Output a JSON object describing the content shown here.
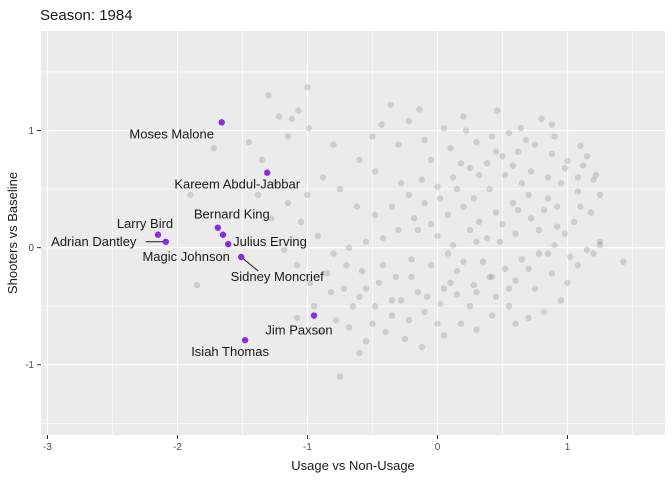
{
  "chart_data": {
    "type": "scatter",
    "title": "Season: 1984",
    "xlabel": "Usage vs Non-Usage",
    "ylabel": "Shooters vs Baseline",
    "xlim": [
      -3.05,
      1.75
    ],
    "ylim": [
      -1.6,
      1.85
    ],
    "xticks": [
      -3,
      -2,
      -1,
      0,
      1
    ],
    "yticks": [
      -1,
      0,
      1
    ],
    "xtick_labels": [
      "-3",
      "-2",
      "-1",
      "0",
      "1"
    ],
    "ytick_labels": [
      "-1",
      "0",
      "1"
    ],
    "grid": true,
    "highlight_color": "#8a2be2",
    "background_color": "#666666",
    "panel_color": "#ebebeb",
    "highlighted": [
      {
        "name": "Moses Malone",
        "x": -1.66,
        "y": 1.07
      },
      {
        "name": "Kareem Abdul-Jabbar",
        "x": -1.31,
        "y": 0.64
      },
      {
        "name": "Bernard King",
        "x": -1.69,
        "y": 0.17
      },
      {
        "name": "Larry Bird",
        "x": -2.15,
        "y": 0.11
      },
      {
        "name": "Julius Erving",
        "x": -1.65,
        "y": 0.11
      },
      {
        "name": "Adrian Dantley",
        "x": -2.09,
        "y": 0.05
      },
      {
        "name": "Magic Johnson",
        "x": -1.61,
        "y": 0.03
      },
      {
        "name": "Sidney Moncrief",
        "x": -1.51,
        "y": -0.08
      },
      {
        "name": "Jim Paxson",
        "x": -0.95,
        "y": -0.58
      },
      {
        "name": "Isiah Thomas",
        "x": -1.48,
        "y": -0.79
      }
    ],
    "background_points": [
      [
        -1.0,
        1.37
      ],
      [
        -1.07,
        1.17
      ],
      [
        -1.22,
        1.12
      ],
      [
        -1.12,
        1.1
      ],
      [
        -0.99,
        1.02
      ],
      [
        -0.43,
        1.05
      ],
      [
        -0.22,
        1.08
      ],
      [
        -0.14,
        1.18
      ],
      [
        -0.36,
        1.22
      ],
      [
        0.05,
        1.02
      ],
      [
        0.22,
        1.0
      ],
      [
        0.46,
        1.17
      ],
      [
        0.64,
        1.02
      ],
      [
        0.88,
        1.05
      ],
      [
        1.1,
        0.87
      ],
      [
        -1.3,
        1.3
      ],
      [
        -1.15,
        0.95
      ],
      [
        -0.8,
        0.88
      ],
      [
        -0.6,
        0.75
      ],
      [
        -0.48,
        0.65
      ],
      [
        -0.28,
        0.55
      ],
      [
        -0.12,
        0.58
      ],
      [
        0.0,
        0.52
      ],
      [
        0.12,
        0.6
      ],
      [
        0.25,
        0.68
      ],
      [
        0.38,
        0.72
      ],
      [
        0.5,
        0.78
      ],
      [
        0.62,
        0.82
      ],
      [
        0.75,
        0.88
      ],
      [
        0.88,
        0.8
      ],
      [
        1.0,
        0.74
      ],
      [
        1.12,
        0.7
      ],
      [
        1.2,
        0.58
      ],
      [
        1.25,
        0.45
      ],
      [
        1.18,
        0.3
      ],
      [
        1.05,
        0.22
      ],
      [
        0.92,
        0.18
      ],
      [
        0.82,
        0.32
      ],
      [
        0.7,
        0.45
      ],
      [
        0.58,
        0.38
      ],
      [
        0.45,
        0.3
      ],
      [
        0.32,
        0.22
      ],
      [
        0.2,
        0.35
      ],
      [
        0.08,
        0.28
      ],
      [
        -0.05,
        0.2
      ],
      [
        -0.18,
        0.25
      ],
      [
        -0.3,
        0.15
      ],
      [
        -0.42,
        0.08
      ],
      [
        -0.55,
        0.05
      ],
      [
        -0.68,
        0.0
      ],
      [
        -0.8,
        -0.05
      ],
      [
        -0.92,
        0.1
      ],
      [
        -1.05,
        0.22
      ],
      [
        -1.15,
        0.38
      ],
      [
        -1.25,
        0.55
      ],
      [
        -1.35,
        0.75
      ],
      [
        -1.45,
        0.9
      ],
      [
        -1.38,
        0.45
      ],
      [
        -1.28,
        0.25
      ],
      [
        -1.18,
        -0.02
      ],
      [
        -1.08,
        -0.15
      ],
      [
        -0.98,
        -0.3
      ],
      [
        -0.85,
        -0.22
      ],
      [
        -0.72,
        -0.35
      ],
      [
        -0.6,
        -0.42
      ],
      [
        -0.48,
        -0.5
      ],
      [
        -0.35,
        -0.58
      ],
      [
        -0.22,
        -0.62
      ],
      [
        -0.1,
        -0.55
      ],
      [
        0.02,
        -0.48
      ],
      [
        0.15,
        -0.4
      ],
      [
        0.28,
        -0.32
      ],
      [
        0.4,
        -0.25
      ],
      [
        0.52,
        -0.18
      ],
      [
        0.65,
        -0.1
      ],
      [
        0.78,
        -0.05
      ],
      [
        0.9,
        0.02
      ],
      [
        1.02,
        -0.08
      ],
      [
        1.15,
        -0.02
      ],
      [
        1.25,
        0.05
      ],
      [
        1.43,
        -0.12
      ],
      [
        0.55,
        -0.5
      ],
      [
        0.7,
        -0.6
      ],
      [
        0.82,
        -0.55
      ],
      [
        0.95,
        -0.45
      ],
      [
        0.6,
        -0.65
      ],
      [
        0.42,
        -0.58
      ],
      [
        0.3,
        -0.7
      ],
      [
        0.18,
        -0.65
      ],
      [
        0.05,
        -0.75
      ],
      [
        -0.12,
        -0.85
      ],
      [
        -0.25,
        -0.78
      ],
      [
        -0.4,
        -0.72
      ],
      [
        -0.55,
        -0.8
      ],
      [
        -0.68,
        -0.68
      ],
      [
        -0.75,
        -1.1
      ],
      [
        -0.6,
        -0.9
      ],
      [
        -0.35,
        -0.45
      ],
      [
        -0.15,
        -0.38
      ],
      [
        0.1,
        -0.3
      ],
      [
        0.35,
        -0.12
      ],
      [
        0.48,
        0.05
      ],
      [
        0.6,
        0.12
      ],
      [
        0.72,
        0.25
      ],
      [
        0.85,
        0.42
      ],
      [
        0.95,
        0.55
      ],
      [
        1.08,
        0.48
      ],
      [
        1.22,
        0.62
      ],
      [
        1.1,
        0.35
      ],
      [
        0.98,
        0.12
      ],
      [
        0.65,
        0.55
      ],
      [
        0.52,
        0.62
      ],
      [
        0.4,
        0.5
      ],
      [
        0.28,
        0.42
      ],
      [
        0.15,
        0.5
      ],
      [
        0.02,
        0.42
      ],
      [
        -0.1,
        0.38
      ],
      [
        -0.22,
        0.45
      ],
      [
        -0.35,
        0.35
      ],
      [
        -0.48,
        0.28
      ],
      [
        -0.62,
        0.35
      ],
      [
        -0.75,
        0.5
      ],
      [
        -0.88,
        0.6
      ],
      [
        -1.0,
        0.45
      ],
      [
        -0.5,
        0.95
      ],
      [
        -0.3,
        0.88
      ],
      [
        -0.1,
        0.92
      ],
      [
        0.1,
        0.85
      ],
      [
        0.3,
        0.9
      ],
      [
        0.42,
        0.95
      ],
      [
        0.55,
        0.98
      ],
      [
        0.68,
        0.92
      ],
      [
        0.8,
        1.1
      ],
      [
        0.2,
        1.12
      ],
      [
        -0.05,
        0.75
      ],
      [
        0.18,
        0.72
      ],
      [
        0.32,
        0.62
      ],
      [
        0.45,
        0.82
      ],
      [
        0.58,
        0.7
      ],
      [
        0.72,
        0.65
      ],
      [
        0.85,
        0.6
      ],
      [
        0.98,
        0.68
      ],
      [
        1.08,
        0.6
      ],
      [
        1.15,
        0.78
      ],
      [
        0.9,
        0.95
      ],
      [
        0.3,
        0.05
      ],
      [
        0.2,
        -0.12
      ],
      [
        0.08,
        -0.05
      ],
      [
        -0.05,
        -0.15
      ],
      [
        -0.2,
        -0.1
      ],
      [
        -0.32,
        -0.25
      ],
      [
        -0.45,
        -0.3
      ],
      [
        -0.58,
        -0.2
      ],
      [
        -0.7,
        -0.15
      ],
      [
        -0.82,
        -0.38
      ],
      [
        -0.95,
        -0.5
      ],
      [
        -1.08,
        -0.6
      ],
      [
        -0.5,
        -0.65
      ],
      [
        -0.2,
        -0.25
      ],
      [
        0.0,
        -0.65
      ],
      [
        0.25,
        -0.5
      ],
      [
        0.45,
        -0.42
      ],
      [
        0.6,
        -0.28
      ],
      [
        0.75,
        -0.35
      ],
      [
        0.88,
        -0.22
      ],
      [
        1.0,
        -0.3
      ],
      [
        1.08,
        -0.15
      ],
      [
        1.2,
        -0.05
      ],
      [
        1.25,
        0.02
      ],
      [
        0.85,
        -0.05
      ],
      [
        0.7,
        -0.18
      ],
      [
        0.55,
        -0.35
      ],
      [
        0.42,
        -0.25
      ],
      [
        0.3,
        -0.38
      ],
      [
        0.15,
        -0.2
      ],
      [
        0.05,
        -0.35
      ],
      [
        -0.08,
        -0.42
      ],
      [
        -0.28,
        -0.45
      ],
      [
        -0.42,
        -0.15
      ],
      [
        -0.55,
        -0.35
      ],
      [
        -0.65,
        -0.5
      ],
      [
        -0.78,
        -0.62
      ],
      [
        -0.9,
        -0.72
      ],
      [
        -1.85,
        -0.32
      ],
      [
        -1.72,
        0.85
      ],
      [
        -1.9,
        0.45
      ],
      [
        -0.15,
        0.15
      ],
      [
        0.0,
        0.1
      ],
      [
        0.12,
        0.02
      ],
      [
        0.25,
        0.15
      ],
      [
        0.38,
        0.08
      ],
      [
        0.5,
        0.2
      ],
      [
        0.62,
        0.32
      ],
      [
        0.78,
        0.15
      ],
      [
        0.92,
        0.35
      ]
    ]
  }
}
